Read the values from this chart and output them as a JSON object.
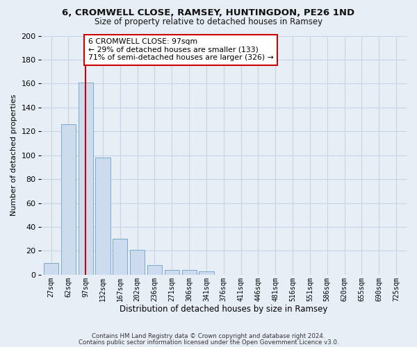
{
  "title1": "6, CROMWELL CLOSE, RAMSEY, HUNTINGDON, PE26 1ND",
  "title2": "Size of property relative to detached houses in Ramsey",
  "xlabel": "Distribution of detached houses by size in Ramsey",
  "ylabel": "Number of detached properties",
  "categories": [
    "27sqm",
    "62sqm",
    "97sqm",
    "132sqm",
    "167sqm",
    "202sqm",
    "236sqm",
    "271sqm",
    "306sqm",
    "341sqm",
    "376sqm",
    "411sqm",
    "446sqm",
    "481sqm",
    "516sqm",
    "551sqm",
    "586sqm",
    "620sqm",
    "655sqm",
    "690sqm",
    "725sqm"
  ],
  "values": [
    10,
    126,
    161,
    98,
    30,
    21,
    8,
    4,
    4,
    3,
    0,
    0,
    0,
    0,
    0,
    0,
    0,
    0,
    0,
    0,
    0
  ],
  "bar_color": "#ccdcee",
  "bar_edge_color": "#7aaac8",
  "vline_x_idx": 2,
  "vline_color": "#cc0000",
  "annotation_text": "6 CROMWELL CLOSE: 97sqm\n← 29% of detached houses are smaller (133)\n71% of semi-detached houses are larger (326) →",
  "annotation_box_color": "#ffffff",
  "annotation_box_edge": "#cc0000",
  "ylim": [
    0,
    200
  ],
  "yticks": [
    0,
    20,
    40,
    60,
    80,
    100,
    120,
    140,
    160,
    180,
    200
  ],
  "grid_color": "#c8d4e4",
  "footer1": "Contains HM Land Registry data © Crown copyright and database right 2024.",
  "footer2": "Contains public sector information licensed under the Open Government Licence v3.0.",
  "bg_color": "#e8eef6"
}
